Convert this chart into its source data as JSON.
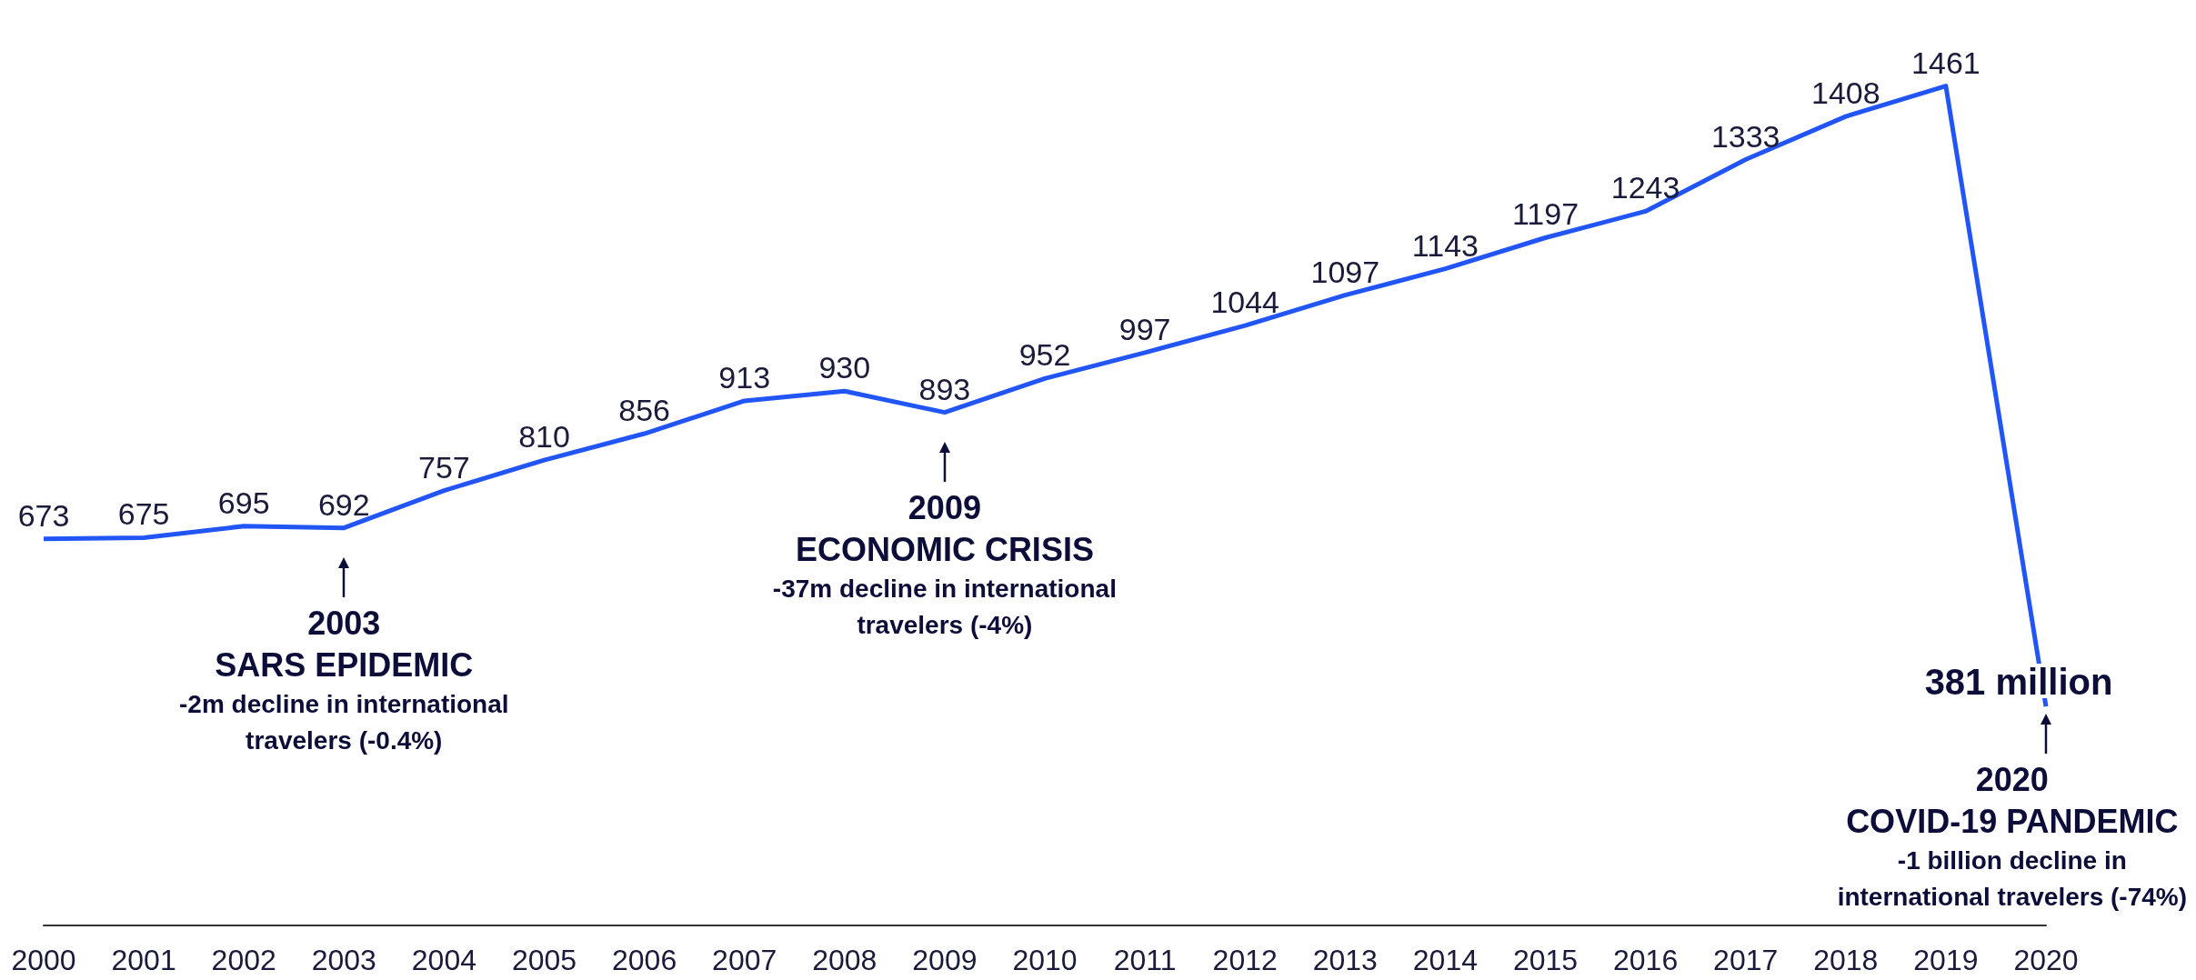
{
  "chart_data": {
    "type": "line",
    "categories": [
      "2000",
      "2001",
      "2002",
      "2003",
      "2004",
      "2005",
      "2006",
      "2007",
      "2008",
      "2009",
      "2010",
      "2011",
      "2012",
      "2013",
      "2014",
      "2015",
      "2016",
      "2017",
      "2018",
      "2019",
      "2020"
    ],
    "series": [
      {
        "color": "#2255f5",
        "values": [
          673,
          675,
          695,
          692,
          757,
          810,
          856,
          913,
          930,
          893,
          952,
          997,
          1044,
          1097,
          1143,
          1197,
          1243,
          1333,
          1408,
          1461,
          381
        ],
        "value_labels": [
          "673",
          "675",
          "695",
          "692",
          "757",
          "810",
          "856",
          "913",
          "930",
          "893",
          "952",
          "997",
          "1044",
          "1097",
          "1143",
          "1197",
          "1243",
          "1333",
          "1408",
          "1461",
          "381 million"
        ]
      }
    ],
    "annotations": [
      {
        "text": "2003\nSARS EPIDEMIC\n-2m decline in international\ntravelers (-0.4%)",
        "x": "2003",
        "y": 692
      },
      {
        "text": "2009\nECONOMIC CRISIS\n-37m decline in international\ntravelers (-4%)",
        "x": "2009",
        "y": 893
      },
      {
        "text": "2020\nCOVID-19 PANDEMIC\n-1 billion decline in\ninternational travelers (-74%)",
        "x": "2020",
        "y": 381
      }
    ],
    "grid": false,
    "marker": "none",
    "line_style": "solid"
  }
}
